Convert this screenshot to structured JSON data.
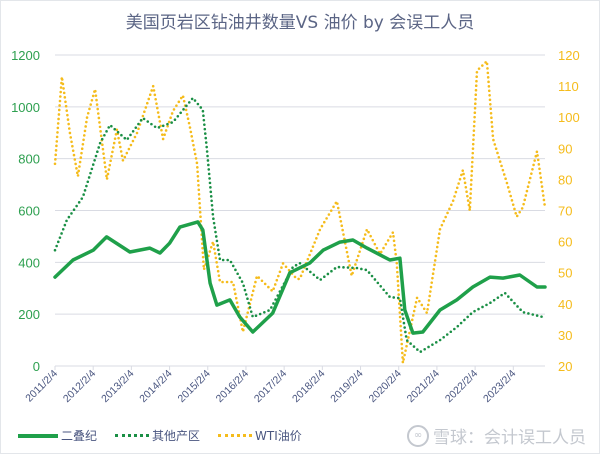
{
  "chart_data": {
    "type": "line",
    "title": "美国页岩区钻油井数量VS 油价  by 会误工人员",
    "x_tick_labels": [
      "2011/2/4",
      "2012/2/4",
      "2013/2/4",
      "2014/2/4",
      "2015/2/4",
      "2016/2/4",
      "2017/2/4",
      "2018/2/4",
      "2019/2/4",
      "2020/2/4",
      "2021/2/4",
      "2022/2/4",
      "2023/2/4"
    ],
    "x_tick_years": [
      2011.1,
      2012.1,
      2013.1,
      2014.1,
      2015.1,
      2016.1,
      2017.1,
      2018.1,
      2019.1,
      2020.1,
      2021.1,
      2022.1,
      2023.1
    ],
    "xlim": [
      2011.1,
      2023.93
    ],
    "y_left": {
      "lim": [
        0,
        1200
      ],
      "ticks": [
        "0",
        "200",
        "400",
        "600",
        "800",
        "1000",
        "1200"
      ],
      "color": "#2ea050"
    },
    "y_right": {
      "lim": [
        20,
        120
      ],
      "ticks": [
        "20",
        "30",
        "40",
        "50",
        "60",
        "70",
        "80",
        "90",
        "100",
        "110",
        "120"
      ],
      "color": "#f5bc1c"
    },
    "grid": true,
    "legend_position": "bottom-left",
    "series": [
      {
        "name": "二叠纪",
        "axis": "left",
        "style": "solid",
        "color": "#1fa04a",
        "x": [
          2011.1,
          2011.57,
          2012.1,
          2012.45,
          2013.06,
          2013.58,
          2013.85,
          2014.1,
          2014.37,
          2014.84,
          2014.97,
          2015.16,
          2015.34,
          2015.68,
          2015.94,
          2016.28,
          2016.8,
          2017.25,
          2017.77,
          2018.12,
          2018.56,
          2018.9,
          2019.27,
          2019.87,
          2020.13,
          2020.26,
          2020.47,
          2020.73,
          2021.18,
          2021.62,
          2022.04,
          2022.49,
          2022.83,
          2023.27,
          2023.72,
          2023.93
        ],
        "y": [
          343,
          409,
          447,
          498,
          440,
          455,
          436,
          474,
          536,
          556,
          525,
          320,
          235,
          255,
          189,
          131,
          204,
          360,
          397,
          447,
          478,
          486,
          455,
          409,
          416,
          216,
          127,
          131,
          216,
          255,
          305,
          343,
          339,
          351,
          305,
          305
        ]
      },
      {
        "name": "其他产区",
        "axis": "left",
        "style": "dotted",
        "color": "#1a8f45",
        "x": [
          2011.1,
          2011.41,
          2011.83,
          2012.28,
          2012.54,
          2012.98,
          2013.4,
          2013.77,
          2014.19,
          2014.71,
          2014.97,
          2015.08,
          2015.24,
          2015.42,
          2015.68,
          2016.02,
          2016.28,
          2016.73,
          2017.33,
          2017.51,
          2018.04,
          2018.48,
          2019.0,
          2019.27,
          2019.87,
          2020.13,
          2020.31,
          2020.66,
          2021.18,
          2021.62,
          2022.04,
          2022.49,
          2022.88,
          2023.35,
          2023.88
        ],
        "y": [
          447,
          563,
          652,
          860,
          930,
          872,
          957,
          918,
          941,
          1034,
          988,
          833,
          575,
          409,
          409,
          320,
          189,
          216,
          382,
          397,
          332,
          382,
          378,
          370,
          266,
          262,
          100,
          54,
          100,
          150,
          208,
          243,
          282,
          208,
          189
        ]
      },
      {
        "name": "WTI油价",
        "axis": "right",
        "style": "dotted",
        "color": "#f5bc1c",
        "x": [
          2011.1,
          2011.28,
          2011.49,
          2011.7,
          2011.94,
          2012.15,
          2012.46,
          2012.72,
          2012.88,
          2013.25,
          2013.67,
          2013.93,
          2014.19,
          2014.45,
          2014.63,
          2014.82,
          2014.9,
          2015.0,
          2015.24,
          2015.42,
          2015.76,
          2016.02,
          2016.39,
          2016.8,
          2017.07,
          2017.43,
          2017.51,
          2018.04,
          2018.48,
          2018.87,
          2019.27,
          2019.61,
          2019.95,
          2020.05,
          2020.21,
          2020.58,
          2020.84,
          2021.18,
          2021.52,
          2021.78,
          2021.96,
          2022.15,
          2022.41,
          2022.57,
          2022.75,
          2022.93,
          2023.19,
          2023.35,
          2023.72,
          2023.93
        ],
        "y": [
          85,
          113,
          95,
          81,
          100,
          109,
          80,
          96,
          86,
          95,
          110,
          93,
          102,
          107,
          97,
          85,
          70,
          51,
          60,
          47,
          47,
          31,
          49,
          44,
          53,
          48,
          48,
          64,
          73,
          49,
          64,
          56,
          63,
          53,
          21,
          42,
          37,
          64,
          73,
          83,
          70,
          115,
          118,
          93,
          86,
          79,
          68,
          71,
          89,
          71
        ]
      }
    ]
  },
  "title": "美国页岩区钻油井数量VS 油价  by 会误工人员",
  "legend": {
    "items": [
      "二叠纪",
      "其他产区",
      "WTI油价"
    ]
  },
  "watermark": {
    "logo_text": "∞",
    "text": "雪球：会计误工人员"
  }
}
